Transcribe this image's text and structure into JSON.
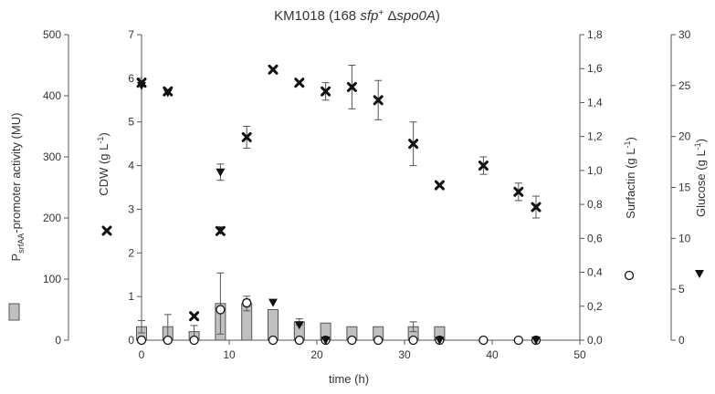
{
  "chart_data": {
    "type": "bar",
    "title": {
      "prefix": "KM1018 (168 ",
      "italic1": "sfp",
      "sup": "+",
      "mid": " Δ",
      "italic2": "spo0A",
      "suffix": ")"
    },
    "xlabel": "time (h)",
    "x_ticks": [
      "0",
      "10",
      "20",
      "30",
      "40",
      "50"
    ],
    "xlim": [
      0,
      50
    ],
    "axes": {
      "promoter": {
        "label_main": "P",
        "label_sub": "srfAA",
        "label_rest": "-promoter activity (MU)",
        "ylim": [
          0,
          500
        ],
        "ticks": [
          "0",
          "100",
          "200",
          "300",
          "400",
          "500"
        ]
      },
      "cdw": {
        "label_main": "CDW (g L",
        "label_sup": "-1",
        "label_end": ")",
        "ylim": [
          0,
          7
        ],
        "ticks": [
          "0",
          "1",
          "2",
          "3",
          "4",
          "5",
          "6",
          "7"
        ]
      },
      "surfactin": {
        "label_main": "Surfactin (g L",
        "label_sup": "-1",
        "label_end": ")",
        "ylim": [
          0,
          1.8
        ],
        "ticks": [
          "0,0",
          "0,2",
          "0,4",
          "0,6",
          "0,8",
          "1,0",
          "1,2",
          "1,4",
          "1,6",
          "1,8"
        ]
      },
      "glucose": {
        "label_main": "Glucose (g L",
        "label_sup": "-1",
        "label_end": ")",
        "ylim": [
          0,
          30
        ],
        "ticks": [
          "0",
          "5",
          "10",
          "15",
          "20",
          "25",
          "30"
        ]
      }
    },
    "series": [
      {
        "key": "promoter",
        "type": "bar",
        "axis": "promoter",
        "color": "#c0c0c0",
        "x": [
          0,
          3,
          6,
          9,
          12,
          15,
          18,
          21,
          24,
          27,
          31,
          34
        ],
        "values": [
          22,
          22,
          14,
          60,
          60,
          50,
          30,
          28,
          22,
          22,
          22,
          22
        ],
        "errors": [
          10,
          20,
          10,
          50,
          12,
          0,
          5,
          0,
          0,
          0,
          8,
          0
        ]
      },
      {
        "key": "cdw",
        "type": "scatter",
        "marker": "x",
        "axis": "cdw",
        "color": "#111111",
        "x": [
          0,
          3,
          6,
          9,
          12,
          15,
          18,
          21,
          24,
          27,
          31,
          34,
          39,
          43,
          45
        ],
        "values": [
          5.9,
          5.7,
          0.55,
          2.5,
          4.65,
          6.2,
          5.9,
          5.7,
          5.8,
          5.5,
          4.5,
          3.55,
          4.0,
          3.4,
          3.05
        ],
        "errors": [
          0,
          0,
          0,
          0,
          0.25,
          0,
          0,
          0.2,
          0.5,
          0.45,
          0.5,
          0,
          0.2,
          0.2,
          0.25
        ]
      },
      {
        "key": "surfactin",
        "type": "scatter",
        "marker": "open-circle",
        "axis": "surfactin",
        "color": "#111111",
        "x": [
          0,
          3,
          6,
          9,
          12,
          15,
          18,
          21,
          24,
          27,
          31,
          34,
          39,
          43,
          45
        ],
        "values": [
          0.0,
          0.0,
          0.0,
          0.18,
          0.22,
          0.0,
          0.0,
          0.0,
          0.0,
          0.0,
          0.0,
          0.0,
          0.0,
          0.0,
          0.0
        ],
        "errors": [
          0,
          0,
          0,
          0,
          0.02,
          0,
          0,
          0,
          0,
          0,
          0,
          0,
          0,
          0,
          0
        ]
      },
      {
        "key": "glucose",
        "type": "scatter",
        "marker": "triangle-down",
        "axis": "glucose",
        "color": "#111111",
        "x": [
          0,
          3,
          9,
          9,
          15,
          18,
          21,
          34,
          45
        ],
        "values": [
          25.0,
          24.3,
          16.5,
          10.8,
          3.7,
          1.5,
          0.0,
          0.0,
          0.0
        ],
        "errors": [
          0,
          0,
          0.8,
          0,
          0,
          0,
          0,
          0,
          0
        ]
      }
    ],
    "grid": false,
    "legend": "beside-axes"
  }
}
